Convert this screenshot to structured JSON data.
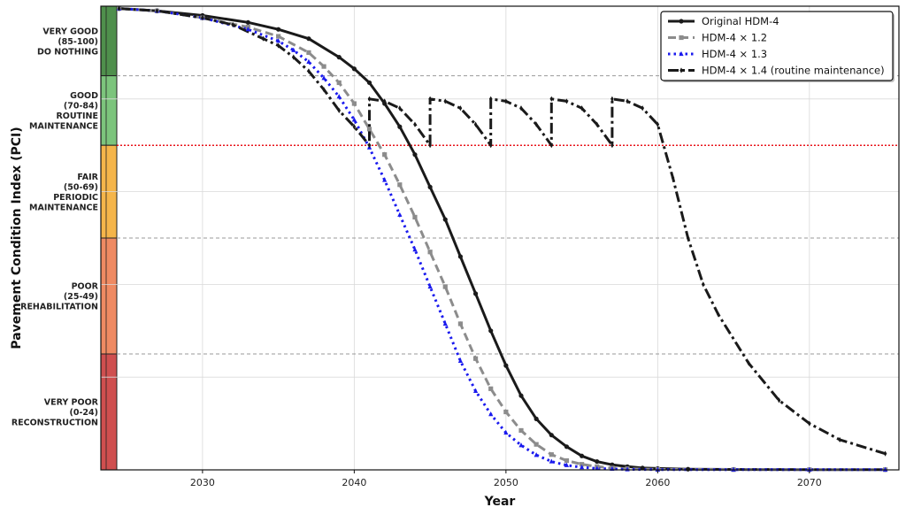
{
  "chart_data": {
    "type": "line",
    "xlabel": "Year",
    "ylabel": "Pavement Condition Index (PCI)",
    "xlim": [
      2023.3,
      2075.9
    ],
    "ylim": [
      0,
      100
    ],
    "xticks": [
      2030,
      2040,
      2050,
      2060,
      2070
    ],
    "grid": true,
    "legend_position": "top-right",
    "intervention_threshold": 70,
    "threshold_color": "#e8141c",
    "condition_bands": [
      {
        "lines": [
          "VERY GOOD",
          "(85-100)",
          "DO NOTHING"
        ],
        "min": 85,
        "max": 100,
        "color": "#4f8f4c"
      },
      {
        "lines": [
          "GOOD",
          "(70-84)",
          "ROUTINE",
          "MAINTENANCE"
        ],
        "min": 70,
        "max": 85,
        "color": "#7cc47c"
      },
      {
        "lines": [
          "FAIR",
          "(50-69)",
          "PERIODIC",
          "MAINTENANCE"
        ],
        "min": 50,
        "max": 70,
        "color": "#f5b54a"
      },
      {
        "lines": [
          "POOR",
          "(25-49)",
          "REHABILITATION"
        ],
        "min": 25,
        "max": 50,
        "color": "#ef8a62"
      },
      {
        "lines": [
          "VERY POOR",
          "(0-24)",
          "RECONSTRUCTION"
        ],
        "min": 0,
        "max": 25,
        "color": "#cf4f4f"
      }
    ],
    "series": [
      {
        "name": "Original HDM-4",
        "color": "#1a1a1a",
        "style": "solid",
        "marker": "circle",
        "x": [
          2024.5,
          2027,
          2030,
          2033,
          2035,
          2037,
          2039,
          2040,
          2041,
          2042,
          2043,
          2044,
          2045,
          2046,
          2047,
          2048,
          2049,
          2050,
          2051,
          2052,
          2053,
          2054,
          2055,
          2056,
          2057,
          2058,
          2059,
          2060,
          2062,
          2065,
          2070,
          2075
        ],
        "y": [
          99.5,
          99,
          98,
          96.5,
          95,
          93,
          89,
          86.5,
          83.5,
          79,
          74,
          68,
          61,
          54,
          46,
          38,
          30,
          22.5,
          16,
          11,
          7.5,
          5,
          3,
          1.8,
          1.1,
          0.7,
          0.4,
          0.3,
          0.15,
          0.1,
          0.05,
          0.05
        ]
      },
      {
        "name": "HDM-4 × 1.2",
        "color": "#8c8c8c",
        "style": "dashed",
        "marker": "square",
        "x": [
          2024.5,
          2027,
          2030,
          2033,
          2035,
          2037,
          2038,
          2039,
          2040,
          2041,
          2042,
          2043,
          2044,
          2045,
          2046,
          2047,
          2048,
          2049,
          2050,
          2051,
          2052,
          2053,
          2054,
          2055,
          2056,
          2057,
          2058,
          2060,
          2065,
          2070,
          2075
        ],
        "y": [
          99.5,
          99,
          97.5,
          95.5,
          93.5,
          90,
          87,
          83.5,
          79,
          73.5,
          68,
          61.5,
          54.5,
          47,
          39.5,
          31.5,
          24,
          17.5,
          12.5,
          8.5,
          5.5,
          3.3,
          2,
          1.2,
          0.7,
          0.4,
          0.25,
          0.1,
          0.05,
          0.05,
          0.05
        ]
      },
      {
        "name": "HDM-4 × 1.3",
        "color": "#1a1aee",
        "style": "dotted",
        "marker": "triangle",
        "x": [
          2024.5,
          2027,
          2030,
          2033,
          2035,
          2036,
          2037,
          2038,
          2039,
          2040,
          2041,
          2042,
          2043,
          2044,
          2045,
          2046,
          2047,
          2048,
          2049,
          2050,
          2051,
          2052,
          2053,
          2054,
          2055,
          2056,
          2057,
          2058,
          2060,
          2065,
          2070,
          2075
        ],
        "y": [
          99.5,
          99,
          97.5,
          95,
          92.5,
          90.5,
          88,
          84.5,
          80.5,
          75.5,
          69.5,
          62.5,
          55,
          47.5,
          39.5,
          31.5,
          23.5,
          17,
          12,
          8,
          5.3,
          3.2,
          1.8,
          1.0,
          0.55,
          0.3,
          0.2,
          0.1,
          0.05,
          0.05,
          0.05,
          0.05
        ]
      },
      {
        "name": "HDM-4 × 1.4 (routine maintenance)",
        "color": "#1a1a1a",
        "style": "dashdot",
        "marker": "diamond",
        "x": [
          2024.5,
          2027,
          2030,
          2032,
          2034,
          2035,
          2036,
          2037,
          2038,
          2039,
          2040,
          2041,
          2041,
          2042,
          2043,
          2044,
          2045,
          2045,
          2046,
          2047,
          2048,
          2049,
          2049,
          2050,
          2051,
          2052,
          2053,
          2053,
          2054,
          2055,
          2056,
          2057,
          2057,
          2058,
          2059,
          2060,
          2061,
          2062,
          2063,
          2064,
          2066,
          2068,
          2070,
          2072,
          2075
        ],
        "y": [
          99.5,
          99,
          97.5,
          96,
          93,
          91.5,
          89,
          86,
          82,
          77.5,
          74,
          70,
          80,
          79.5,
          78,
          74.5,
          70,
          80,
          79.5,
          78,
          74.5,
          70,
          80,
          79.5,
          78,
          74.5,
          70,
          80,
          79.5,
          78,
          74.5,
          70,
          80,
          79.5,
          78,
          74.5,
          63,
          50,
          40,
          33.5,
          23,
          15,
          10,
          6.5,
          3.5
        ]
      }
    ]
  }
}
